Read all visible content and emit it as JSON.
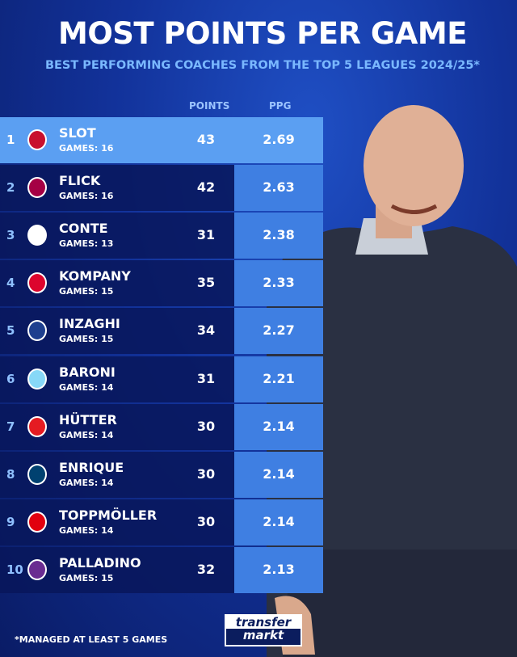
{
  "title": "MOST POINTS PER GAME",
  "subtitle": "BEST PERFORMING COACHES FROM THE TOP 5 LEAGUES 2024/25*",
  "columns": {
    "points": "POINTS",
    "ppg": "PPG"
  },
  "rows": [
    {
      "rank": "1",
      "name": "SLOT",
      "games": "GAMES: 16",
      "points": "43",
      "ppg": "2.69",
      "crest": "liverpool-crest",
      "color": "#c8102e"
    },
    {
      "rank": "2",
      "name": "FLICK",
      "games": "GAMES: 16",
      "points": "42",
      "ppg": "2.63",
      "crest": "barcelona-crest",
      "color": "#a50044"
    },
    {
      "rank": "3",
      "name": "CONTE",
      "games": "GAMES: 13",
      "points": "31",
      "ppg": "2.38",
      "crest": "napoli-crest",
      "color": "#ffffff"
    },
    {
      "rank": "4",
      "name": "KOMPANY",
      "games": "GAMES: 15",
      "points": "35",
      "ppg": "2.33",
      "crest": "bayern-crest",
      "color": "#dc052d"
    },
    {
      "rank": "5",
      "name": "INZAGHI",
      "games": "GAMES: 15",
      "points": "34",
      "ppg": "2.27",
      "crest": "inter-crest",
      "color": "#1e3f8f"
    },
    {
      "rank": "6",
      "name": "BARONI",
      "games": "GAMES: 14",
      "points": "31",
      "ppg": "2.21",
      "crest": "lazio-crest",
      "color": "#87d8f7"
    },
    {
      "rank": "7",
      "name": "HÜTTER",
      "games": "GAMES: 14",
      "points": "30",
      "ppg": "2.14",
      "crest": "monaco-crest",
      "color": "#e51b22"
    },
    {
      "rank": "8",
      "name": "ENRIQUE",
      "games": "GAMES: 14",
      "points": "30",
      "ppg": "2.14",
      "crest": "psg-crest",
      "color": "#004170"
    },
    {
      "rank": "9",
      "name": "TOPPMÖLLER",
      "games": "GAMES: 14",
      "points": "30",
      "ppg": "2.14",
      "crest": "frankfurt-crest",
      "color": "#e1000f"
    },
    {
      "rank": "10",
      "name": "PALLADINO",
      "games": "GAMES: 15",
      "points": "32",
      "ppg": "2.13",
      "crest": "fiorentina-crest",
      "color": "#6a2c91"
    }
  ],
  "footnote": "*MANAGED AT LEAST 5 GAMES",
  "logo": {
    "line1": "transfer",
    "line2": "markt"
  }
}
